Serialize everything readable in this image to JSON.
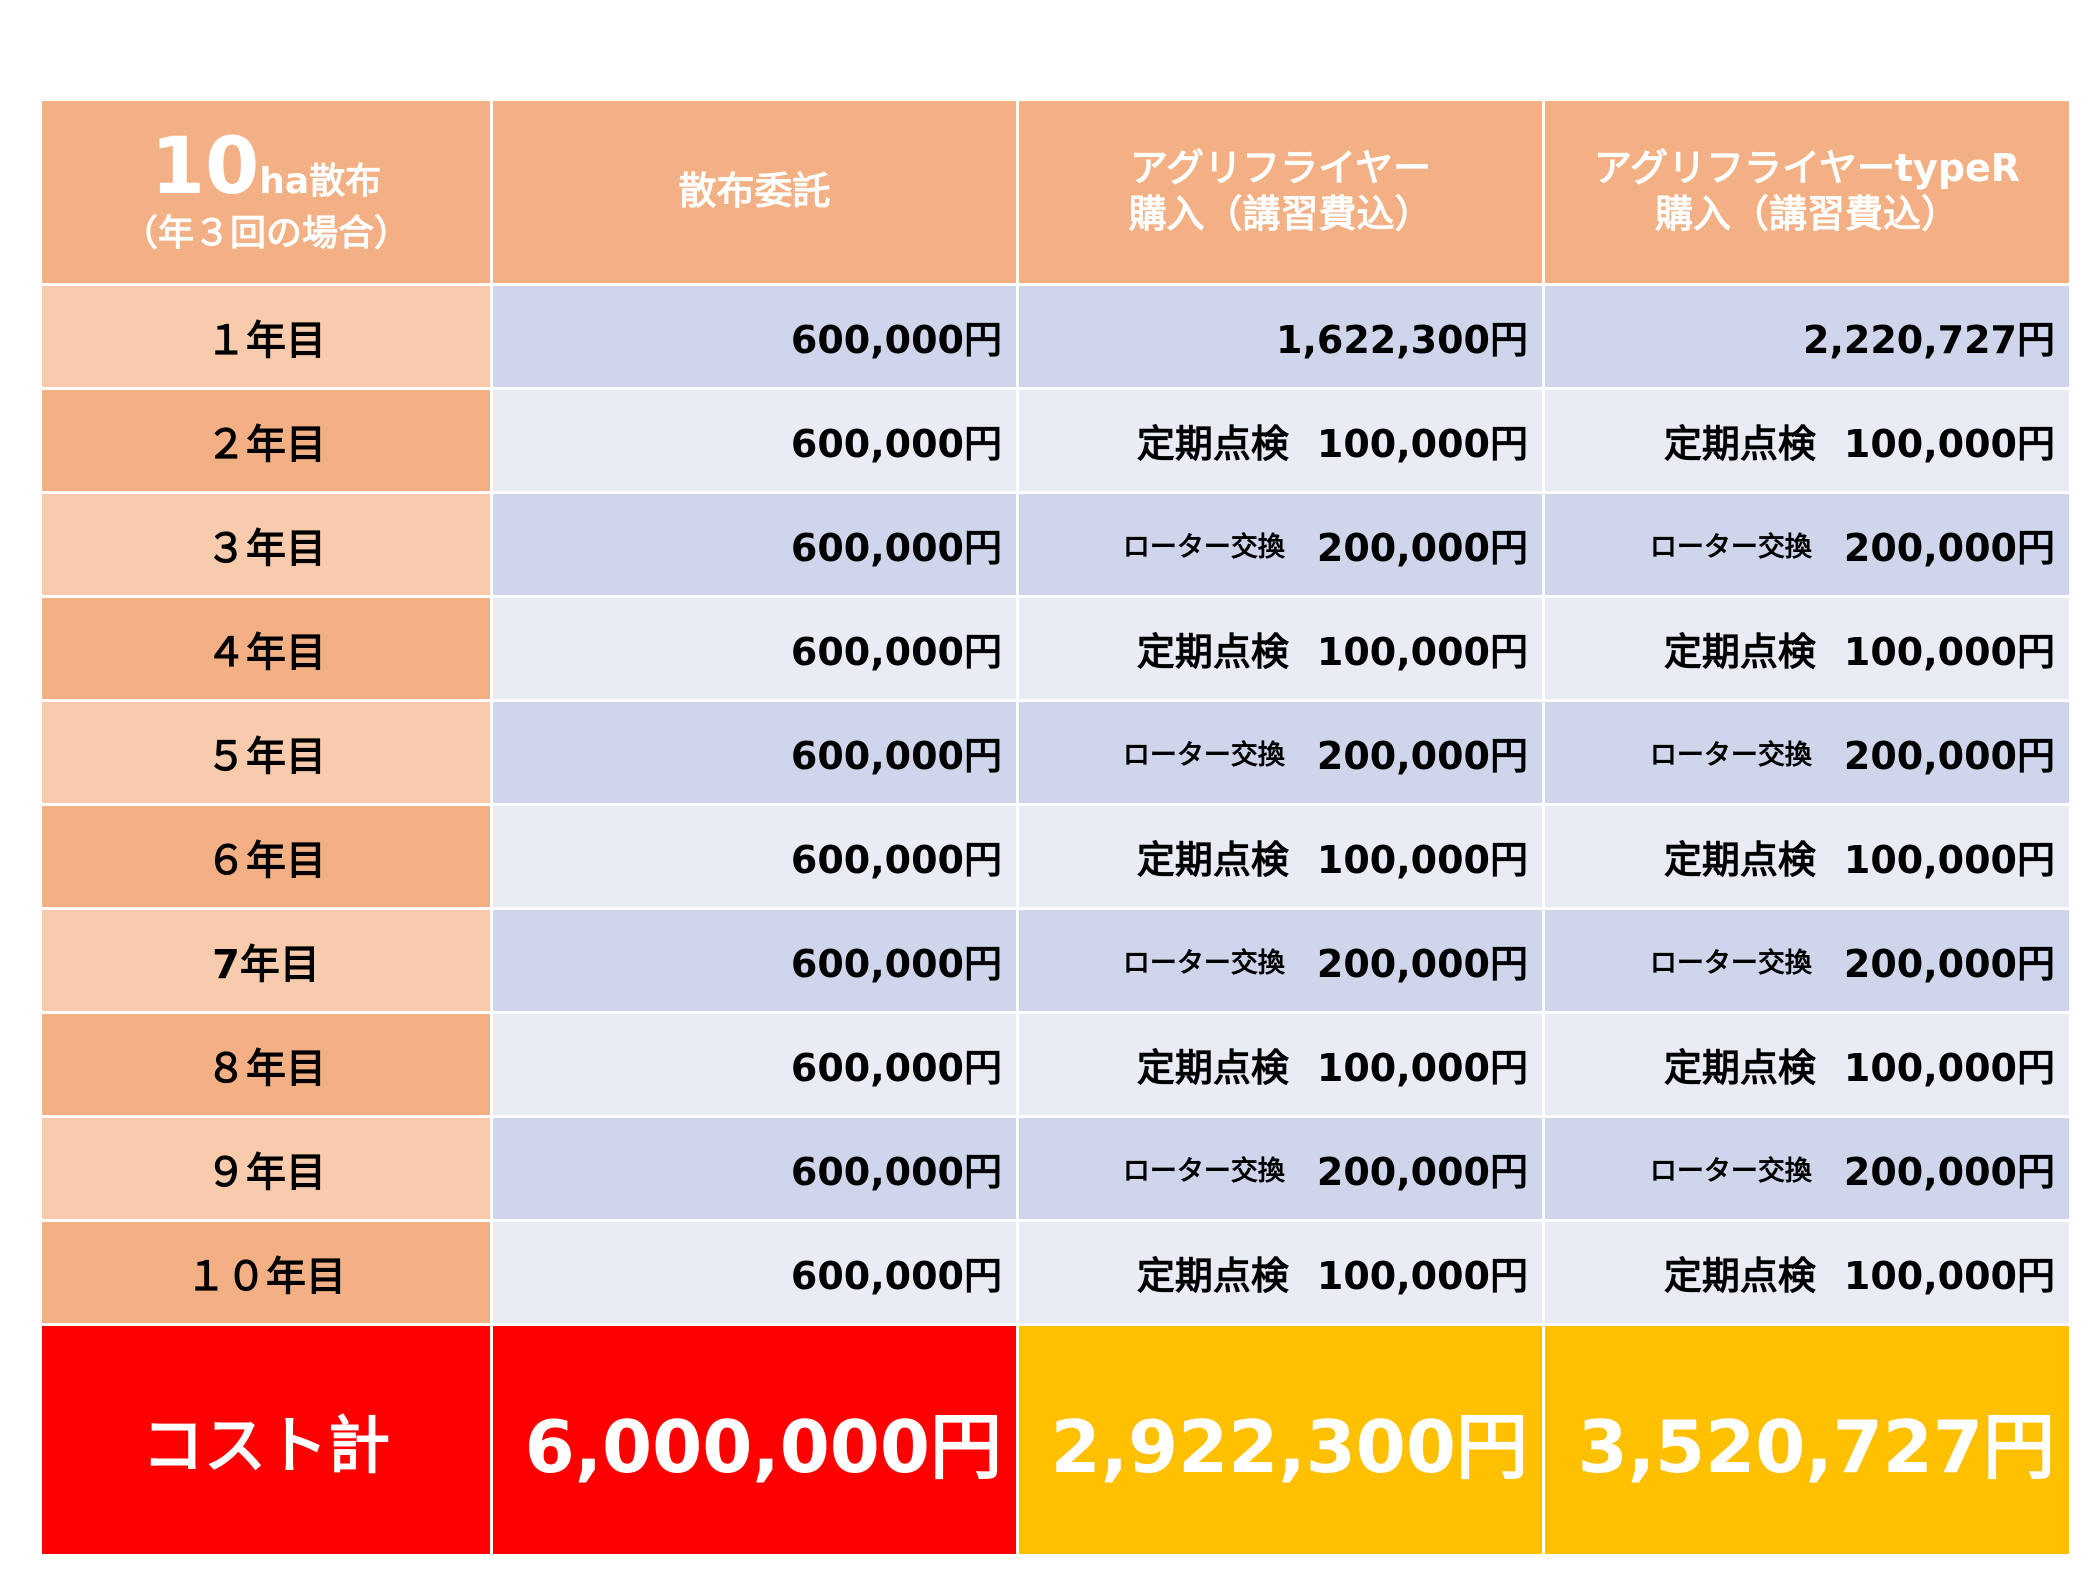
{
  "header": {
    "first": {
      "number": "10",
      "unit": "ha散布",
      "sub": "（年３回の場合）"
    },
    "col1": "散布委託",
    "col2": {
      "line1": "アグリフライヤー",
      "line2": "購入（講習費込）"
    },
    "col3": {
      "line1": "アグリフライヤーtypeR",
      "line2": "購入（講習費込）"
    }
  },
  "rows": [
    {
      "year": "１年目",
      "col1": "600,000円",
      "col2_label": "",
      "col2": "1,622,300円",
      "col3_label": "",
      "col3": "2,220,727円"
    },
    {
      "year": "２年目",
      "col1": "600,000円",
      "col2_label": "定期点検",
      "col2": "100,000円",
      "col3_label": "定期点検",
      "col3": "100,000円"
    },
    {
      "year": "３年目",
      "col1": "600,000円",
      "col2_label": "ローター交換",
      "col2": "200,000円",
      "col3_label": "ローター交換",
      "col3": "200,000円"
    },
    {
      "year": "４年目",
      "col1": "600,000円",
      "col2_label": "定期点検",
      "col2": "100,000円",
      "col3_label": "定期点検",
      "col3": "100,000円"
    },
    {
      "year": "５年目",
      "col1": "600,000円",
      "col2_label": "ローター交換",
      "col2": "200,000円",
      "col3_label": "ローター交換",
      "col3": "200,000円"
    },
    {
      "year": "６年目",
      "col1": "600,000円",
      "col2_label": "定期点検",
      "col2": "100,000円",
      "col3_label": "定期点検",
      "col3": "100,000円"
    },
    {
      "year": "7年目",
      "col1": "600,000円",
      "col2_label": "ローター交換",
      "col2": "200,000円",
      "col3_label": "ローター交換",
      "col3": "200,000円"
    },
    {
      "year": "８年目",
      "col1": "600,000円",
      "col2_label": "定期点検",
      "col2": "100,000円",
      "col3_label": "定期点検",
      "col3": "100,000円"
    },
    {
      "year": "９年目",
      "col1": "600,000円",
      "col2_label": "ローター交換",
      "col2": "200,000円",
      "col3_label": "ローター交換",
      "col3": "200,000円"
    },
    {
      "year": "１０年目",
      "col1": "600,000円",
      "col2_label": "定期点検",
      "col2": "100,000円",
      "col3_label": "定期点検",
      "col3": "100,000円"
    }
  ],
  "total": {
    "label": "コスト計",
    "col1": "6,000,000円",
    "col2": "2,922,300円",
    "col3": "3,520,727円"
  },
  "colors": {
    "header_orange": "#f3b085",
    "row_light_orange": "#f7cbac",
    "row_blue_dark": "#cfd5ea",
    "row_blue_light": "#e9ebf5",
    "total_red": "#ff0000",
    "total_gold": "#ffc000"
  }
}
